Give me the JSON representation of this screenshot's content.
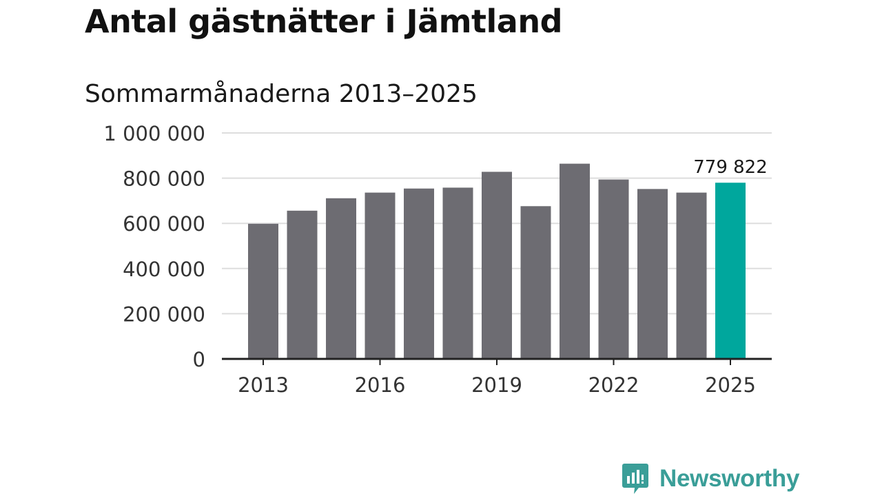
{
  "title": "Antal gästnätter i Jämtland",
  "subtitle": "Sommarmånaderna 2013–2025",
  "brand": {
    "name": "Newsworthy",
    "icon": "newsworthy-logo-icon",
    "color": "#3a9e98"
  },
  "colors": {
    "bar": "#6d6c72",
    "highlight": "#00a79d",
    "grid": "#dddddd",
    "axis": "#222222",
    "text": "#333333"
  },
  "chart_data": {
    "type": "bar",
    "categories": [
      "2013",
      "2014",
      "2015",
      "2016",
      "2017",
      "2018",
      "2019",
      "2020",
      "2021",
      "2022",
      "2023",
      "2024",
      "2025"
    ],
    "values": [
      598000,
      656000,
      711000,
      736000,
      754000,
      758000,
      828000,
      676000,
      864000,
      794000,
      752000,
      736000,
      779822
    ],
    "highlight_index": 12,
    "data_label": "779 822",
    "x_ticks": [
      "2013",
      "2016",
      "2019",
      "2022",
      "2025"
    ],
    "y_ticks": [
      {
        "value": 0,
        "label": "0"
      },
      {
        "value": 200000,
        "label": "200 000"
      },
      {
        "value": 400000,
        "label": "400 000"
      },
      {
        "value": 600000,
        "label": "600 000"
      },
      {
        "value": 800000,
        "label": "800 000"
      },
      {
        "value": 1000000,
        "label": "1 000 000"
      }
    ],
    "ylim": [
      0,
      1000000
    ],
    "grid": true,
    "title": "",
    "xlabel": "",
    "ylabel": ""
  }
}
